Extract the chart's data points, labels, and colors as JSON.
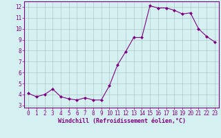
{
  "x": [
    0,
    1,
    2,
    3,
    4,
    5,
    6,
    7,
    8,
    9,
    10,
    11,
    12,
    13,
    14,
    15,
    16,
    17,
    18,
    19,
    20,
    21,
    22,
    23
  ],
  "y": [
    4.1,
    3.8,
    4.0,
    4.5,
    3.8,
    3.6,
    3.5,
    3.7,
    3.5,
    3.5,
    4.8,
    6.7,
    7.9,
    9.2,
    9.2,
    12.1,
    11.9,
    11.9,
    11.7,
    11.35,
    11.45,
    10.0,
    9.3,
    8.8
  ],
  "line_color": "#800080",
  "marker": "D",
  "marker_size": 2,
  "bg_color": "#d4f0f0",
  "grid_color": "#b0c8c8",
  "xlabel": "Windchill (Refroidissement éolien,°C)",
  "xlabel_color": "#800080",
  "tick_color": "#800080",
  "yticks": [
    3,
    4,
    5,
    6,
    7,
    8,
    9,
    10,
    11,
    12
  ],
  "xticks": [
    0,
    1,
    2,
    3,
    4,
    5,
    6,
    7,
    8,
    9,
    10,
    11,
    12,
    13,
    14,
    15,
    16,
    17,
    18,
    19,
    20,
    21,
    22,
    23
  ],
  "ylim": [
    2.8,
    12.5
  ],
  "xlim": [
    -0.5,
    23.5
  ],
  "tick_fontsize": 5.5,
  "xlabel_fontsize": 6.0,
  "linewidth": 0.8
}
